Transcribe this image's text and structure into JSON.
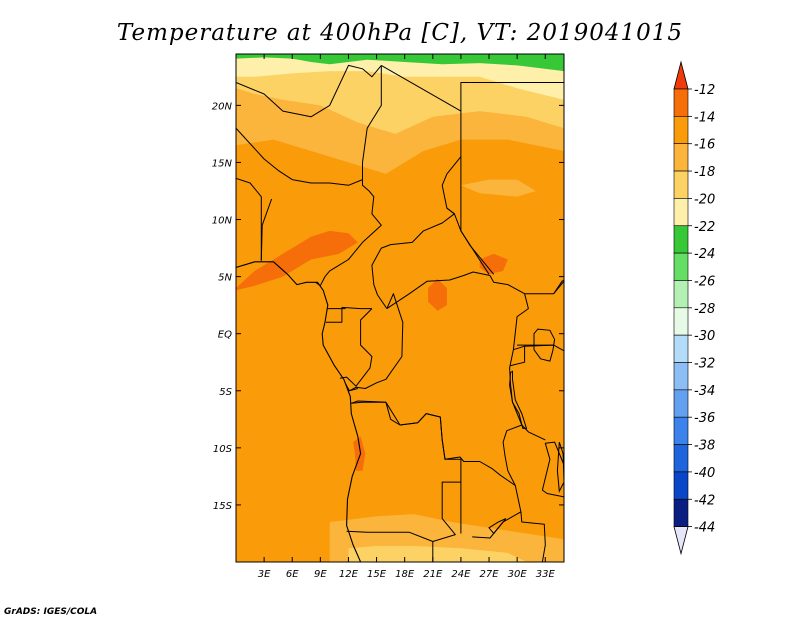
{
  "title": "Temperature at 400hPa [C], VT: 2019041015",
  "credit": "GrADS: IGES/COLA",
  "map": {
    "lon_range": [
      0,
      35
    ],
    "lat_range": [
      -20,
      24.5
    ],
    "lon_ticks": [
      {
        "value": 3,
        "label": "3E"
      },
      {
        "value": 6,
        "label": "6E"
      },
      {
        "value": 9,
        "label": "9E"
      },
      {
        "value": 12,
        "label": "12E"
      },
      {
        "value": 15,
        "label": "15E"
      },
      {
        "value": 18,
        "label": "18E"
      },
      {
        "value": 21,
        "label": "21E"
      },
      {
        "value": 24,
        "label": "24E"
      },
      {
        "value": 27,
        "label": "27E"
      },
      {
        "value": 30,
        "label": "30E"
      },
      {
        "value": 33,
        "label": "33E"
      }
    ],
    "lat_ticks": [
      {
        "value": 20,
        "label": "20N"
      },
      {
        "value": 15,
        "label": "15N"
      },
      {
        "value": 10,
        "label": "10N"
      },
      {
        "value": 5,
        "label": "5N"
      },
      {
        "value": 0,
        "label": "EQ"
      },
      {
        "value": -5,
        "label": "5S"
      },
      {
        "value": -10,
        "label": "10S"
      },
      {
        "value": -15,
        "label": "15S"
      }
    ]
  },
  "colorbar": {
    "levels": [
      "-12",
      "-14",
      "-16",
      "-18",
      "-20",
      "-22",
      "-24",
      "-26",
      "-28",
      "-30",
      "-32",
      "-34",
      "-36",
      "-38",
      "-40",
      "-42",
      "-44"
    ],
    "colors": [
      "#f03c0a",
      "#f56e0a",
      "#fa9b0a",
      "#fbb43c",
      "#fdd264",
      "#fef0aa",
      "#37c837",
      "#64de64",
      "#b4f0b4",
      "#e6fae6",
      "#b4dcf8",
      "#8cbef5",
      "#64a0f0",
      "#3c82eb",
      "#1e64dc",
      "#0a46c8",
      "#0a1e82",
      "#e6e6fa"
    ]
  },
  "field": {
    "base_color": "#fa9b0a",
    "regions": [
      {
        "name": "north-warm-band",
        "color": "#fbb43c",
        "points": [
          [
            0,
            24.5
          ],
          [
            35,
            24.5
          ],
          [
            35,
            16
          ],
          [
            29,
            17
          ],
          [
            24,
            17
          ],
          [
            20,
            16
          ],
          [
            16,
            14
          ],
          [
            12,
            15
          ],
          [
            8,
            16
          ],
          [
            4,
            17
          ],
          [
            0,
            16.5
          ]
        ]
      },
      {
        "name": "north-cool-band",
        "color": "#fdd264",
        "points": [
          [
            0,
            24.5
          ],
          [
            35,
            24.5
          ],
          [
            35,
            18
          ],
          [
            31,
            19
          ],
          [
            26,
            19.5
          ],
          [
            21,
            19
          ],
          [
            17,
            17.5
          ],
          [
            13,
            18.5
          ],
          [
            9,
            20
          ],
          [
            5,
            20.5
          ],
          [
            2,
            21
          ],
          [
            0,
            21.5
          ]
        ]
      },
      {
        "name": "north-cooler-band",
        "color": "#fef0aa",
        "points": [
          [
            0,
            24.5
          ],
          [
            35,
            24.5
          ],
          [
            35,
            20.5
          ],
          [
            30,
            21.5
          ],
          [
            26,
            22.5
          ],
          [
            22,
            22.5
          ],
          [
            18,
            22.5
          ],
          [
            14,
            23
          ],
          [
            10,
            23
          ],
          [
            6,
            22.8
          ],
          [
            2,
            22.5
          ],
          [
            0,
            22.5
          ]
        ]
      },
      {
        "name": "northern-green-strip",
        "color": "#37c837",
        "points": [
          [
            0,
            24.5
          ],
          [
            35,
            24.5
          ],
          [
            35,
            23
          ],
          [
            30,
            23.5
          ],
          [
            26,
            23.7
          ],
          [
            22,
            23.6
          ],
          [
            18,
            23.8
          ],
          [
            14,
            24
          ],
          [
            10,
            23.6
          ],
          [
            8,
            23.8
          ],
          [
            6,
            24.1
          ],
          [
            3,
            24.2
          ],
          [
            0,
            24.1
          ]
        ]
      },
      {
        "name": "south-cool-band",
        "color": "#fbb43c",
        "points": [
          [
            10,
            -20
          ],
          [
            35,
            -20
          ],
          [
            35,
            -18
          ],
          [
            31,
            -17.5
          ],
          [
            27,
            -17
          ],
          [
            23,
            -16.5
          ],
          [
            19,
            -15.8
          ],
          [
            15,
            -16
          ],
          [
            12,
            -16.3
          ],
          [
            10,
            -16.5
          ]
        ]
      },
      {
        "name": "south-cooler-band",
        "color": "#fdd264",
        "points": [
          [
            12,
            -20
          ],
          [
            31,
            -20
          ],
          [
            29,
            -19.2
          ],
          [
            24,
            -18.8
          ],
          [
            19,
            -18.6
          ],
          [
            15,
            -18.6
          ],
          [
            12,
            -18.8
          ]
        ]
      },
      {
        "name": "nigeria-warm-patch",
        "color": "#f56e0a",
        "points": [
          [
            0,
            4
          ],
          [
            2,
            5.5
          ],
          [
            4,
            6.5
          ],
          [
            6,
            7.5
          ],
          [
            8,
            8.5
          ],
          [
            10,
            9
          ],
          [
            12,
            8.8
          ],
          [
            13,
            8
          ],
          [
            11,
            7
          ],
          [
            8,
            6.5
          ],
          [
            5,
            5
          ],
          [
            2,
            4.2
          ],
          [
            0,
            3.8
          ]
        ]
      },
      {
        "name": "car-warm-patch",
        "color": "#f56e0a",
        "points": [
          [
            26,
            6.5
          ],
          [
            27.5,
            7
          ],
          [
            29,
            6.5
          ],
          [
            28.5,
            5.5
          ],
          [
            27,
            5.2
          ],
          [
            26,
            5.8
          ]
        ]
      },
      {
        "name": "congo-warm-patch",
        "color": "#f56e0a",
        "points": [
          [
            20.5,
            4
          ],
          [
            21.5,
            4.8
          ],
          [
            22.5,
            4
          ],
          [
            22.5,
            2.5
          ],
          [
            21.5,
            2
          ],
          [
            20.5,
            2.8
          ]
        ]
      },
      {
        "name": "angola-warm-patch",
        "color": "#f56e0a",
        "points": [
          [
            12.5,
            -9.5
          ],
          [
            13.3,
            -9
          ],
          [
            13.8,
            -10.5
          ],
          [
            13.5,
            -12
          ],
          [
            12.8,
            -12
          ],
          [
            12.7,
            -10.5
          ]
        ]
      },
      {
        "name": "ne-cool-patch",
        "color": "#fbb43c",
        "points": [
          [
            24,
            13
          ],
          [
            27,
            13.5
          ],
          [
            30,
            13.5
          ],
          [
            32,
            12.5
          ],
          [
            30,
            12
          ],
          [
            26,
            12.3
          ]
        ]
      }
    ]
  },
  "borders": [
    [
      [
        0,
        22
      ],
      [
        3,
        21
      ],
      [
        5,
        19.5
      ],
      [
        8,
        19
      ],
      [
        10,
        20
      ],
      [
        12,
        23.5
      ],
      [
        13.5,
        23.2
      ],
      [
        14.5,
        22.5
      ],
      [
        15.5,
        23.5
      ]
    ],
    [
      [
        15.5,
        23.5
      ],
      [
        15.5,
        20
      ],
      [
        14,
        18
      ],
      [
        13.5,
        15
      ],
      [
        13.5,
        13
      ],
      [
        14.2,
        12.5
      ],
      [
        14.7,
        12
      ],
      [
        14.5,
        10.5
      ],
      [
        15.5,
        9.5
      ],
      [
        13.5,
        8
      ],
      [
        12,
        6.5
      ],
      [
        11,
        6
      ],
      [
        10,
        5.5
      ],
      [
        9.5,
        5
      ],
      [
        9,
        4.2
      ],
      [
        8.5,
        4.5
      ]
    ],
    [
      [
        0,
        22
      ],
      [
        0,
        18
      ],
      [
        3,
        15.3
      ],
      [
        4.5,
        14.3
      ],
      [
        6,
        13.5
      ],
      [
        8,
        13.2
      ],
      [
        10,
        13.2
      ],
      [
        12,
        13
      ],
      [
        13.5,
        13.5
      ]
    ],
    [
      [
        3.8,
        11.8
      ],
      [
        2.8,
        9.5
      ],
      [
        2.7,
        6.4
      ]
    ],
    [
      [
        2.7,
        6.4
      ],
      [
        2.7,
        12
      ],
      [
        1.5,
        13.2
      ],
      [
        0,
        13.6
      ]
    ],
    [
      [
        15.5,
        23.5
      ],
      [
        24,
        19.5
      ],
      [
        24,
        15.5
      ],
      [
        22.5,
        14
      ],
      [
        22,
        13
      ],
      [
        22.5,
        11
      ],
      [
        23.3,
        10.5
      ],
      [
        22,
        9.7
      ],
      [
        20,
        9
      ],
      [
        18.8,
        8
      ],
      [
        16.5,
        7.8
      ],
      [
        15.5,
        7.5
      ],
      [
        14.5,
        6
      ],
      [
        14.7,
        4.3
      ],
      [
        15.1,
        3.4
      ],
      [
        16.1,
        2.2
      ]
    ],
    [
      [
        16.1,
        2.2
      ],
      [
        18.5,
        3.5
      ],
      [
        20.4,
        4.6
      ],
      [
        22.8,
        4.7
      ],
      [
        24.3,
        5.1
      ],
      [
        25.3,
        5.4
      ],
      [
        27.1,
        5.1
      ],
      [
        27.5,
        4.5
      ],
      [
        29,
        4.3
      ],
      [
        30.8,
        3.5
      ],
      [
        31.2,
        2.2
      ],
      [
        30,
        1.5
      ],
      [
        29.6,
        -1.4
      ],
      [
        29.2,
        -3
      ],
      [
        29.3,
        -4.5
      ],
      [
        29.5,
        -6
      ],
      [
        30.5,
        -8
      ],
      [
        28.9,
        -8.5
      ],
      [
        28.5,
        -9.5
      ],
      [
        28.7,
        -10.7
      ],
      [
        29,
        -12
      ],
      [
        29.8,
        -13.3
      ],
      [
        28.2,
        -12.4
      ],
      [
        27.3,
        -11.8
      ],
      [
        26,
        -11.2
      ],
      [
        24.3,
        -11.2
      ],
      [
        23.9,
        -10.8
      ],
      [
        22.3,
        -11
      ],
      [
        22,
        -9.3
      ],
      [
        21.8,
        -7.3
      ],
      [
        20.3,
        -7
      ],
      [
        19.4,
        -7.8
      ],
      [
        17.5,
        -8
      ],
      [
        16,
        -6
      ],
      [
        13,
        -5.9
      ],
      [
        12.3,
        -6.1
      ]
    ],
    [
      [
        24,
        19.5
      ],
      [
        24,
        22
      ],
      [
        25,
        22
      ]
    ],
    [
      [
        25,
        22
      ],
      [
        35,
        22
      ]
    ],
    [
      [
        24,
        15.5
      ],
      [
        24,
        9
      ],
      [
        27,
        5.2
      ]
    ],
    [
      [
        22.5,
        11
      ],
      [
        23.3,
        10.5
      ],
      [
        24,
        9
      ],
      [
        25,
        7.7
      ],
      [
        27.5,
        5.2
      ]
    ],
    [
      [
        30.8,
        3.5
      ],
      [
        33.9,
        3.5
      ],
      [
        35,
        4.6
      ]
    ],
    [
      [
        30,
        -1
      ],
      [
        33.9,
        -1
      ],
      [
        35,
        -1.5
      ]
    ],
    [
      [
        29.6,
        -1.4
      ],
      [
        30.8,
        -1.1
      ],
      [
        30.8,
        -2.5
      ],
      [
        29.3,
        -2.8
      ]
    ],
    [
      [
        30.8,
        -1.1
      ],
      [
        33.9,
        -1
      ]
    ],
    [
      [
        11.7,
        2.2
      ],
      [
        9.8,
        2.2
      ]
    ],
    [
      [
        11.3,
        2.3
      ],
      [
        11.3,
        1
      ],
      [
        9.6,
        1
      ]
    ],
    [
      [
        14.5,
        2.2
      ],
      [
        13.3,
        2.2
      ],
      [
        11.3,
        2.3
      ]
    ],
    [
      [
        16.1,
        2.2
      ],
      [
        16.8,
        3.5
      ],
      [
        17.8,
        1
      ],
      [
        17.7,
        -2
      ],
      [
        16,
        -4
      ],
      [
        15,
        -4.3
      ],
      [
        13.8,
        -4.8
      ],
      [
        12.8,
        -4.7
      ],
      [
        12.1,
        -5
      ]
    ],
    [
      [
        14.5,
        2.2
      ],
      [
        13.3,
        1.2
      ],
      [
        13.3,
        -1
      ],
      [
        14.5,
        -2
      ],
      [
        14.3,
        -3
      ],
      [
        12.8,
        -4.6
      ],
      [
        11.8,
        -3.8
      ],
      [
        11.1,
        -3.9
      ]
    ],
    [
      [
        11.7,
        -4.4
      ],
      [
        12.1,
        -5
      ],
      [
        13,
        -4.8
      ]
    ],
    [
      [
        12.3,
        -6.1
      ],
      [
        13.5,
        -6
      ],
      [
        16,
        -6
      ],
      [
        16.5,
        -7.5
      ],
      [
        17.5,
        -8
      ],
      [
        19.4,
        -7.8
      ],
      [
        20.3,
        -7
      ],
      [
        21.8,
        -7.3
      ],
      [
        22,
        -9.3
      ],
      [
        22.3,
        -11
      ],
      [
        24,
        -11
      ],
      [
        24,
        -13
      ],
      [
        22,
        -13
      ],
      [
        22,
        -16.2
      ],
      [
        23.4,
        -17.6
      ],
      [
        21,
        -18.2
      ],
      [
        18.5,
        -17.4
      ],
      [
        14,
        -17.4
      ],
      [
        11.8,
        -17.3
      ]
    ],
    [
      [
        21,
        -18.2
      ],
      [
        21,
        -20
      ]
    ],
    [
      [
        25.2,
        -17.8
      ],
      [
        27.1,
        -17.9
      ],
      [
        28.5,
        -16.5
      ],
      [
        30.4,
        -15.6
      ],
      [
        29.8,
        -13.3
      ]
    ],
    [
      [
        24,
        -13
      ],
      [
        24,
        -17.5
      ]
    ],
    [
      [
        30.4,
        -15.6
      ],
      [
        30.5,
        -16.5
      ],
      [
        32.9,
        -16.7
      ],
      [
        33,
        -18.5
      ],
      [
        32.7,
        -20
      ]
    ],
    [
      [
        35,
        -14.3
      ],
      [
        33.2,
        -14
      ],
      [
        32.7,
        -13.7
      ],
      [
        33.5,
        -11
      ],
      [
        33,
        -9.6
      ],
      [
        34,
        -9.5
      ],
      [
        35,
        -11.5
      ]
    ],
    [
      [
        30.5,
        -8
      ],
      [
        31.2,
        -8.6
      ],
      [
        33,
        -9.3
      ]
    ],
    [
      [
        33.9,
        3.5
      ],
      [
        34.8,
        4.6
      ],
      [
        35,
        4.7
      ]
    ]
  ],
  "coastline": [
    [
      0,
      5.8
    ],
    [
      2,
      6.3
    ],
    [
      4,
      6.3
    ],
    [
      5.5,
      5.2
    ],
    [
      6.5,
      4.3
    ],
    [
      7.5,
      4.5
    ],
    [
      8.7,
      4.5
    ],
    [
      9.3,
      3.8
    ],
    [
      9.8,
      2.5
    ],
    [
      9.5,
      1
    ],
    [
      9.2,
      0
    ],
    [
      9.3,
      -1
    ],
    [
      10.5,
      -2.8
    ],
    [
      11.5,
      -4
    ],
    [
      12.2,
      -5.5
    ],
    [
      12.3,
      -7
    ],
    [
      13,
      -9
    ],
    [
      13.3,
      -10.5
    ],
    [
      12.4,
      -12.5
    ],
    [
      11.9,
      -14.5
    ],
    [
      11.8,
      -16.8
    ],
    [
      12.5,
      -18.5
    ],
    [
      13.3,
      -20
    ]
  ],
  "lakes": [
    [
      [
        29.3,
        -3.4
      ],
      [
        29.2,
        -4.5
      ],
      [
        29.5,
        -6
      ],
      [
        30.2,
        -7
      ],
      [
        30.6,
        -8.3
      ],
      [
        31,
        -8.3
      ],
      [
        30.5,
        -7
      ],
      [
        29.8,
        -5.8
      ],
      [
        29.5,
        -4
      ],
      [
        29.5,
        -3.3
      ]
    ],
    [
      [
        32.2,
        0.4
      ],
      [
        33.5,
        0.3
      ],
      [
        34,
        -0.5
      ],
      [
        33.8,
        -1.5
      ],
      [
        33.5,
        -2.4
      ],
      [
        32.5,
        -2.2
      ],
      [
        31.8,
        -1.4
      ],
      [
        31.8,
        0
      ]
    ],
    [
      [
        34.5,
        -9.5
      ],
      [
        34.9,
        -10.5
      ],
      [
        35,
        -13
      ],
      [
        34.5,
        -13.8
      ],
      [
        34.3,
        -12
      ]
    ],
    [
      [
        27,
        -17
      ],
      [
        28,
        -16.5
      ],
      [
        28.8,
        -16.2
      ],
      [
        27.5,
        -17.5
      ]
    ]
  ],
  "lonlines": [],
  "credit_position": "bottom-left"
}
